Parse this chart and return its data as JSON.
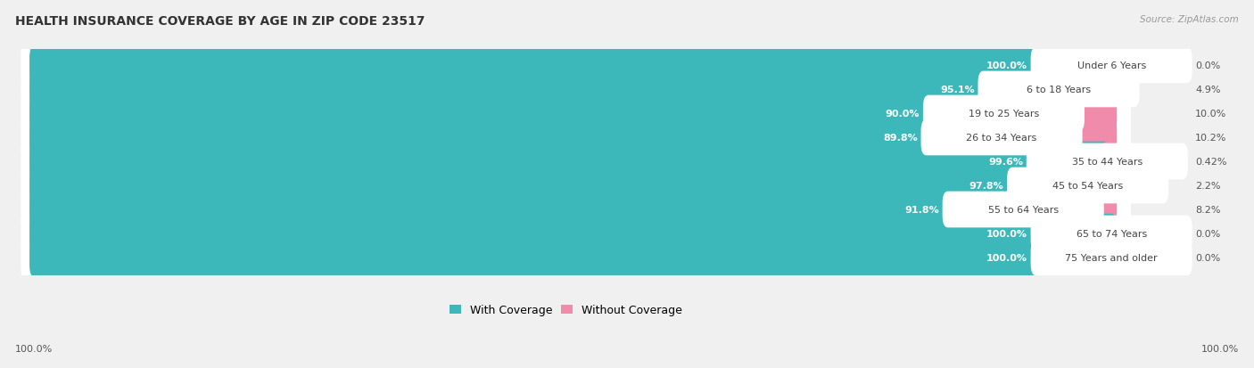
{
  "title": "HEALTH INSURANCE COVERAGE BY AGE IN ZIP CODE 23517",
  "source": "Source: ZipAtlas.com",
  "categories": [
    "Under 6 Years",
    "6 to 18 Years",
    "19 to 25 Years",
    "26 to 34 Years",
    "35 to 44 Years",
    "45 to 54 Years",
    "55 to 64 Years",
    "65 to 74 Years",
    "75 Years and older"
  ],
  "with_coverage": [
    100.0,
    95.1,
    90.0,
    89.8,
    99.6,
    97.8,
    91.8,
    100.0,
    100.0
  ],
  "without_coverage": [
    0.0,
    4.9,
    10.0,
    10.2,
    0.42,
    2.2,
    8.2,
    0.0,
    0.0
  ],
  "without_coverage_labels": [
    "0.0%",
    "4.9%",
    "10.0%",
    "10.2%",
    "0.42%",
    "2.2%",
    "8.2%",
    "0.0%",
    "0.0%"
  ],
  "with_coverage_labels": [
    "100.0%",
    "95.1%",
    "90.0%",
    "89.8%",
    "99.6%",
    "97.8%",
    "91.8%",
    "100.0%",
    "100.0%"
  ],
  "color_with": "#3cb8bb",
  "color_without": "#f08bab",
  "bg_color": "#f0f0f0",
  "row_bg_light": "#e8e8e8",
  "row_bg_dark": "#dedede",
  "title_fontsize": 10,
  "label_fontsize": 8,
  "tick_fontsize": 8,
  "legend_fontsize": 9,
  "total_bar_width": 100.0,
  "max_without_display": 15.0
}
